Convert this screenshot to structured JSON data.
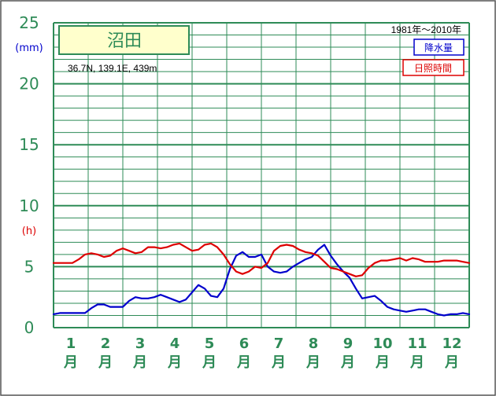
{
  "chart_data": {
    "type": "line",
    "title": "沼田",
    "location": "36.7N,  139.1E,  439m",
    "period": "1981年〜2010年",
    "units": {
      "left_top": "(mm)",
      "left_mid": "(h)"
    },
    "y_ticks": [
      "0",
      "5",
      "10",
      "15",
      "20",
      "25"
    ],
    "ylim": [
      0,
      25
    ],
    "x_ticks": [
      {
        "num": "1",
        "unit": "月"
      },
      {
        "num": "2",
        "unit": "月"
      },
      {
        "num": "3",
        "unit": "月"
      },
      {
        "num": "4",
        "unit": "月"
      },
      {
        "num": "5",
        "unit": "月"
      },
      {
        "num": "6",
        "unit": "月"
      },
      {
        "num": "7",
        "unit": "月"
      },
      {
        "num": "8",
        "unit": "月"
      },
      {
        "num": "9",
        "unit": "月"
      },
      {
        "num": "10",
        "unit": "月"
      },
      {
        "num": "11",
        "unit": "月"
      },
      {
        "num": "12",
        "unit": "月"
      }
    ],
    "grid": true,
    "legend_position": "top-right",
    "series": [
      {
        "name": "降水量",
        "color": "#0000cc",
        "values": [
          1.1,
          1.2,
          1.2,
          1.2,
          1.2,
          1.2,
          1.6,
          1.9,
          1.9,
          1.7,
          1.7,
          1.7,
          2.2,
          2.5,
          2.4,
          2.4,
          2.5,
          2.7,
          2.5,
          2.3,
          2.1,
          2.3,
          2.9,
          3.5,
          3.2,
          2.6,
          2.5,
          3.2,
          4.8,
          5.9,
          6.2,
          5.8,
          5.8,
          6.0,
          5.0,
          4.6,
          4.5,
          4.6,
          5.0,
          5.3,
          5.6,
          5.8,
          6.4,
          6.8,
          5.9,
          5.2,
          4.6,
          4.1,
          3.2,
          2.4,
          2.5,
          2.6,
          2.2,
          1.7,
          1.5,
          1.4,
          1.3,
          1.4,
          1.5,
          1.5,
          1.3,
          1.1,
          1.0,
          1.1,
          1.1,
          1.2,
          1.1
        ]
      },
      {
        "name": "日照時間",
        "color": "#dd0000",
        "values": [
          5.3,
          5.3,
          5.3,
          5.3,
          5.6,
          6.0,
          6.1,
          6.0,
          5.8,
          5.9,
          6.3,
          6.5,
          6.3,
          6.1,
          6.2,
          6.6,
          6.6,
          6.5,
          6.6,
          6.8,
          6.9,
          6.6,
          6.3,
          6.4,
          6.8,
          6.9,
          6.6,
          6.0,
          5.2,
          4.6,
          4.4,
          4.6,
          5.0,
          4.9,
          5.3,
          6.3,
          6.7,
          6.8,
          6.7,
          6.4,
          6.2,
          6.1,
          5.9,
          5.4,
          4.9,
          4.8,
          4.6,
          4.4,
          4.2,
          4.3,
          4.9,
          5.3,
          5.5,
          5.5,
          5.6,
          5.7,
          5.5,
          5.7,
          5.6,
          5.4,
          5.4,
          5.4,
          5.5,
          5.5,
          5.5,
          5.4,
          5.3
        ]
      }
    ]
  },
  "colors": {
    "grid": "#2e8b57",
    "frame": "#555555",
    "title_bg": "#ffffcc"
  }
}
